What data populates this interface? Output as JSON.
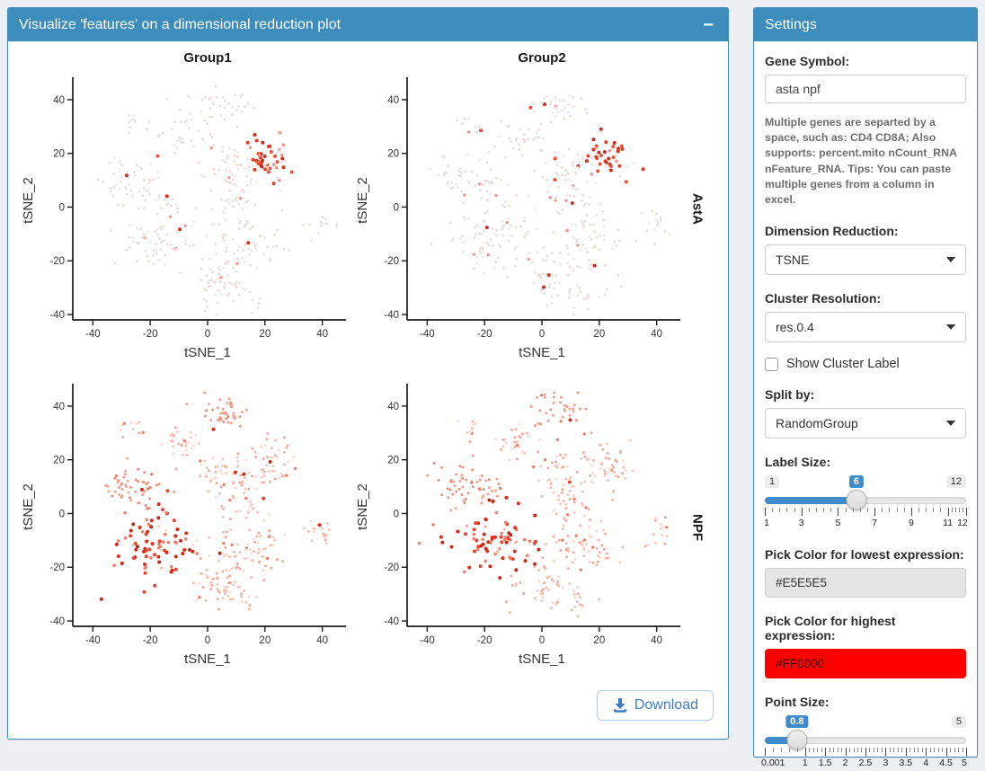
{
  "colors": {
    "header_bg": "#3c8dbc",
    "accent": "#428bca",
    "page_bg": "#eceff4",
    "download_blue": "#3d7cc9"
  },
  "main_box": {
    "title": "Visualize 'features' on a dimensional reduction plot",
    "collapse_label": "−",
    "download_label": "Download"
  },
  "settings": {
    "title": "Settings",
    "gene_symbol": {
      "label": "Gene Symbol:",
      "value": "asta npf"
    },
    "help_text": "Multiple genes are separted by a space, such as: CD4 CD8A; Also supports: percent.mito nCount_RNA nFeature_RNA. Tips: You can paste multiple genes from a column in excel.",
    "dimension_reduction": {
      "label": "Dimension Reduction:",
      "value": "TSNE"
    },
    "cluster_resolution": {
      "label": "Cluster Resolution:",
      "value": "res.0.4"
    },
    "show_cluster_label": {
      "label": "Show Cluster Label",
      "checked": false
    },
    "split_by": {
      "label": "Split by:",
      "value": "RandomGroup"
    },
    "label_size": {
      "label": "Label Size:",
      "min": 1,
      "max": 12,
      "value": 6,
      "badges": {
        "min": "1",
        "max": "12",
        "value": "6"
      },
      "grid_values": [
        1,
        3,
        5,
        7,
        9,
        11,
        12
      ],
      "grid_labels": [
        "1",
        "3",
        "5",
        "7",
        "9",
        "11",
        "12"
      ]
    },
    "low_color": {
      "label": "Pick Color for lowest expression:",
      "value": "#E5E5E5"
    },
    "high_color": {
      "label": "Pick Color for highest expression:",
      "value": "#FF0000"
    },
    "point_size": {
      "label": "Point Size:",
      "min": 0.001,
      "max": 5,
      "value": 0.8,
      "badges": {
        "max": "5",
        "value": "0.8"
      },
      "grid_values": [
        0.001,
        1,
        1.5,
        2,
        2.5,
        3,
        3.5,
        4,
        4.5,
        5
      ],
      "grid_labels": [
        "0.001",
        "1",
        "1.5",
        "2",
        "2.5",
        "3",
        "3.5",
        "4",
        "4.5",
        "5"
      ]
    }
  },
  "chart_data": {
    "type": "scatter",
    "facets": {
      "rows": [
        "AstA",
        "NPF"
      ],
      "cols": [
        "Group1",
        "Group2"
      ]
    },
    "xlabel": "tSNE_1",
    "ylabel": "tSNE_2",
    "xlim": [
      -47,
      47
    ],
    "ylim": [
      -42,
      47
    ],
    "xticks": [
      -40,
      -20,
      0,
      20,
      40
    ],
    "yticks": [
      -40,
      -20,
      0,
      20,
      40
    ],
    "low_color": "#E5E5E5",
    "high_color": "#FF0000",
    "panels": [
      {
        "row": "AstA",
        "col": "Group1",
        "seed": 11
      },
      {
        "row": "AstA",
        "col": "Group2",
        "seed": 23
      },
      {
        "row": "NPF",
        "col": "Group1",
        "seed": 37
      },
      {
        "row": "NPF",
        "col": "Group2",
        "seed": 53
      }
    ],
    "high_cluster": {
      "AstA": "c8",
      "NPF": "c6"
    },
    "clusters": [
      {
        "id": "c1",
        "cx": 5,
        "cy": 38,
        "sdx": 5,
        "sdy": 3.5,
        "n": 38
      },
      {
        "id": "c2",
        "cx": -25,
        "cy": 31,
        "sdx": 2.5,
        "sdy": 2,
        "n": 10
      },
      {
        "id": "c3",
        "cx": -7,
        "cy": 26,
        "sdx": 4.5,
        "sdy": 3.5,
        "n": 30
      },
      {
        "id": "c4",
        "cx": -29,
        "cy": 11,
        "sdx": 4,
        "sdy": 4.5,
        "n": 36
      },
      {
        "id": "c5",
        "cx": -20,
        "cy": 7,
        "sdx": 3,
        "sdy": 3.5,
        "n": 18
      },
      {
        "id": "c6",
        "cx": -17,
        "cy": -11,
        "sdx": 7.5,
        "sdy": 6.5,
        "n": 85
      },
      {
        "id": "c7",
        "cx": 7,
        "cy": 15,
        "sdx": 5,
        "sdy": 4.5,
        "n": 38
      },
      {
        "id": "c8",
        "cx": 22,
        "cy": 18,
        "sdx": 4,
        "sdy": 4.5,
        "n": 42
      },
      {
        "id": "c9",
        "cx": 10,
        "cy": 4,
        "sdx": 4.5,
        "sdy": 4,
        "n": 28
      },
      {
        "id": "c10",
        "cx": 15,
        "cy": -13,
        "sdx": 6.5,
        "sdy": 5.5,
        "n": 65
      },
      {
        "id": "c11",
        "cx": 3,
        "cy": -27,
        "sdx": 5,
        "sdy": 4.5,
        "n": 45
      },
      {
        "id": "c12",
        "cx": 40,
        "cy": -6,
        "sdx": 3,
        "sdy": 2.5,
        "n": 14
      },
      {
        "id": "c13",
        "cx": 13,
        "cy": -33,
        "sdx": 3.5,
        "sdy": 2.5,
        "n": 14
      }
    ],
    "palettes": {
      "AstA": {
        "base": [
          "#e6e6e6",
          "#e2e2e2",
          "#ebe8e7",
          "#f1dbd6"
        ],
        "warm_clusters": [],
        "base_warm": [],
        "mid": "#f0958a",
        "high": [
          "#e73a22",
          "#d62e18",
          "#ca2d1b",
          "#ef5038"
        ],
        "stray_high": 0.012,
        "stray_mid": 0.035,
        "hot_high": 0.6,
        "hot_mid": 0.2
      },
      "NPF": {
        "base": [
          "#f9c8bc",
          "#f6b7a9",
          "#f3a898",
          "#fbd9d0"
        ],
        "warm_clusters": [
          "c4",
          "c5",
          "c1"
        ],
        "base_warm": [
          "#f49d87",
          "#f18e78",
          "#f3a48f"
        ],
        "mid": "#ee7f68",
        "high": [
          "#e02d17",
          "#d32a15",
          "#c62918",
          "#ea4530"
        ],
        "stray_high": 0.01,
        "stray_mid": 0.055,
        "hot_high": 0.65,
        "hot_mid": 0.25
      }
    }
  }
}
